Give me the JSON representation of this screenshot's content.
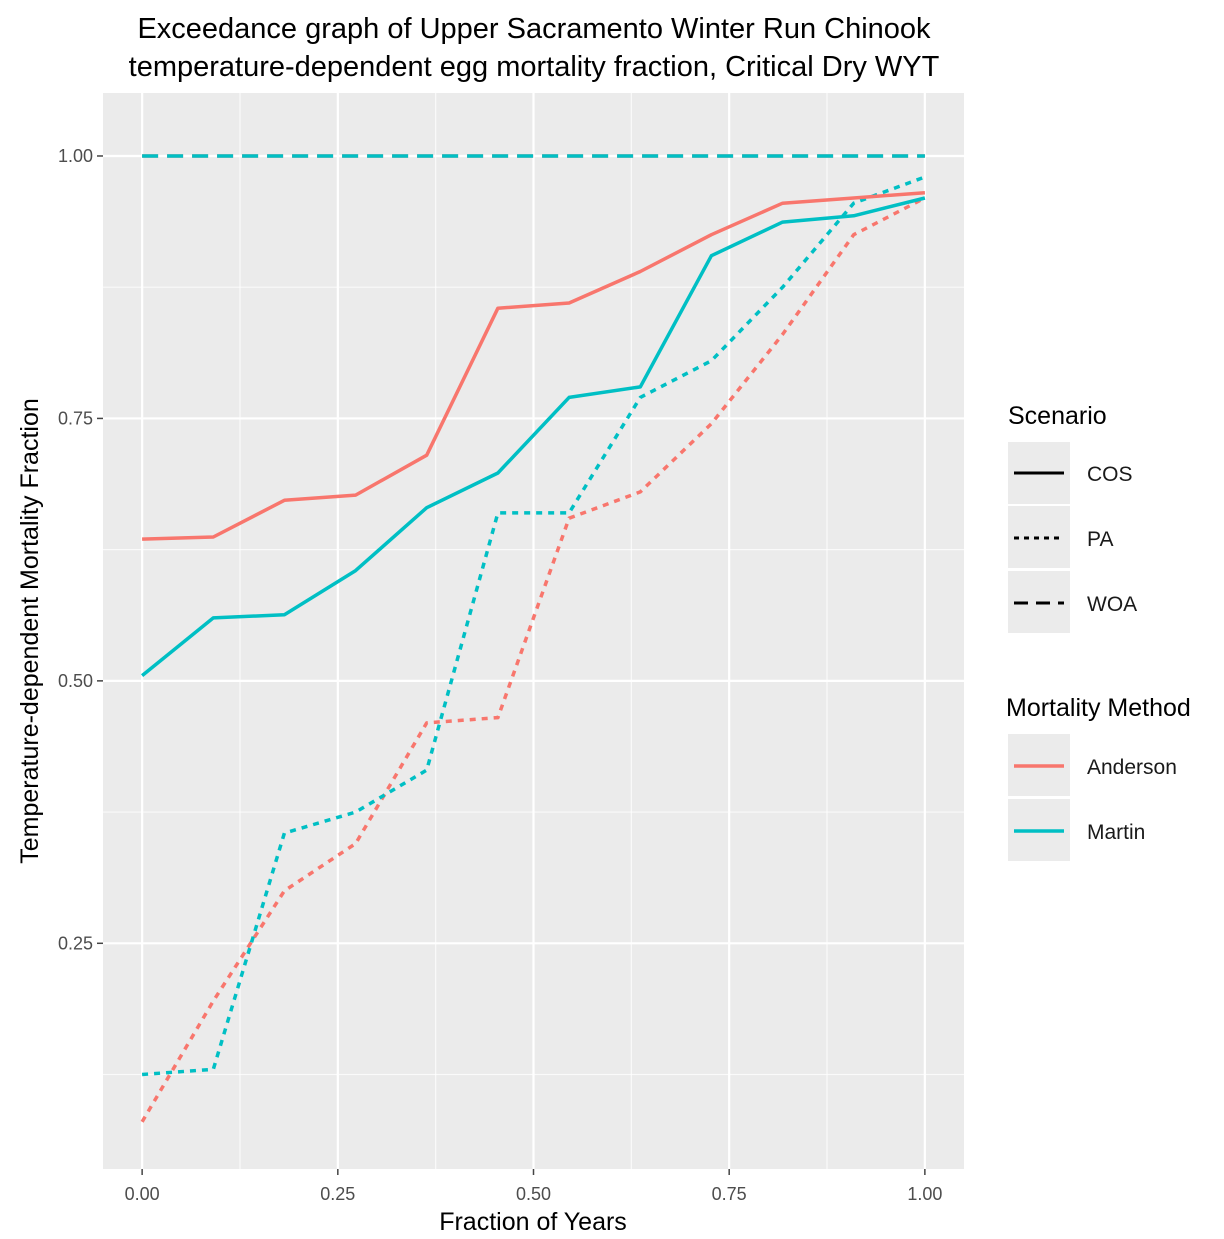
{
  "chart_data": {
    "type": "line",
    "title_line1": "Exceedance graph of Upper Sacramento Winter Run Chinook",
    "title_line2": "temperature-dependent egg mortality fraction, Critical Dry WYT",
    "xlabel": "Fraction of Years",
    "ylabel": "Temperature-dependent Mortality Fraction",
    "xlim": [
      -0.05,
      1.05
    ],
    "ylim": [
      0.035,
      1.06
    ],
    "x_ticks": [
      0.0,
      0.25,
      0.5,
      0.75,
      1.0
    ],
    "x_tick_labels": [
      "0.00",
      "0.25",
      "0.50",
      "0.75",
      "1.00"
    ],
    "y_ticks": [
      0.25,
      0.5,
      0.75,
      1.0
    ],
    "y_tick_labels": [
      "0.25",
      "0.50",
      "0.75",
      "1.00"
    ],
    "grid": true,
    "colors": {
      "Anderson": "#F8766D",
      "Martin": "#00BFC4",
      "panel": "#EBEBEB",
      "grid": "#FFFFFF"
    },
    "legend": {
      "position": "right",
      "scenario_title": "Scenario",
      "scenario_items": [
        {
          "label": "COS",
          "linetype": "solid"
        },
        {
          "label": "PA",
          "linetype": "dotted"
        },
        {
          "label": "WOA",
          "linetype": "dashed"
        }
      ],
      "method_title": "Mortality Method",
      "method_items": [
        {
          "label": "Anderson",
          "color": "#F8766D"
        },
        {
          "label": "Martin",
          "color": "#00BFC4"
        }
      ]
    },
    "x": [
      0.0,
      0.0909,
      0.1818,
      0.2727,
      0.3636,
      0.4545,
      0.5455,
      0.6364,
      0.7273,
      0.8182,
      0.9091,
      1.0
    ],
    "series": [
      {
        "name": "WOA Anderson",
        "scenario": "WOA",
        "method": "Anderson",
        "linetype": "dashed",
        "color": "#F8766D",
        "values": [
          1.0,
          1.0,
          1.0,
          1.0,
          1.0,
          1.0,
          1.0,
          1.0,
          1.0,
          1.0,
          1.0,
          1.0
        ]
      },
      {
        "name": "WOA Martin",
        "scenario": "WOA",
        "method": "Martin",
        "linetype": "dashed",
        "color": "#00BFC4",
        "values": [
          1.0,
          1.0,
          1.0,
          1.0,
          1.0,
          1.0,
          1.0,
          1.0,
          1.0,
          1.0,
          1.0,
          1.0
        ]
      },
      {
        "name": "PA Anderson",
        "scenario": "PA",
        "method": "Anderson",
        "linetype": "dotted",
        "color": "#F8766D",
        "values": [
          0.08,
          0.195,
          0.3,
          0.345,
          0.46,
          0.465,
          0.655,
          0.68,
          0.745,
          0.83,
          0.925,
          0.96
        ]
      },
      {
        "name": "PA Martin",
        "scenario": "PA",
        "method": "Martin",
        "linetype": "dotted",
        "color": "#00BFC4",
        "values": [
          0.125,
          0.13,
          0.355,
          0.375,
          0.415,
          0.66,
          0.66,
          0.77,
          0.805,
          0.875,
          0.955,
          0.98
        ]
      },
      {
        "name": "COS Anderson",
        "scenario": "COS",
        "method": "Anderson",
        "linetype": "solid",
        "color": "#F8766D",
        "values": [
          0.635,
          0.637,
          0.672,
          0.677,
          0.715,
          0.855,
          0.86,
          0.89,
          0.925,
          0.955,
          0.96,
          0.965
        ]
      },
      {
        "name": "COS Martin",
        "scenario": "COS",
        "method": "Martin",
        "linetype": "solid",
        "color": "#00BFC4",
        "values": [
          0.505,
          0.56,
          0.563,
          0.605,
          0.665,
          0.698,
          0.77,
          0.78,
          0.905,
          0.937,
          0.943,
          0.96
        ]
      }
    ]
  }
}
